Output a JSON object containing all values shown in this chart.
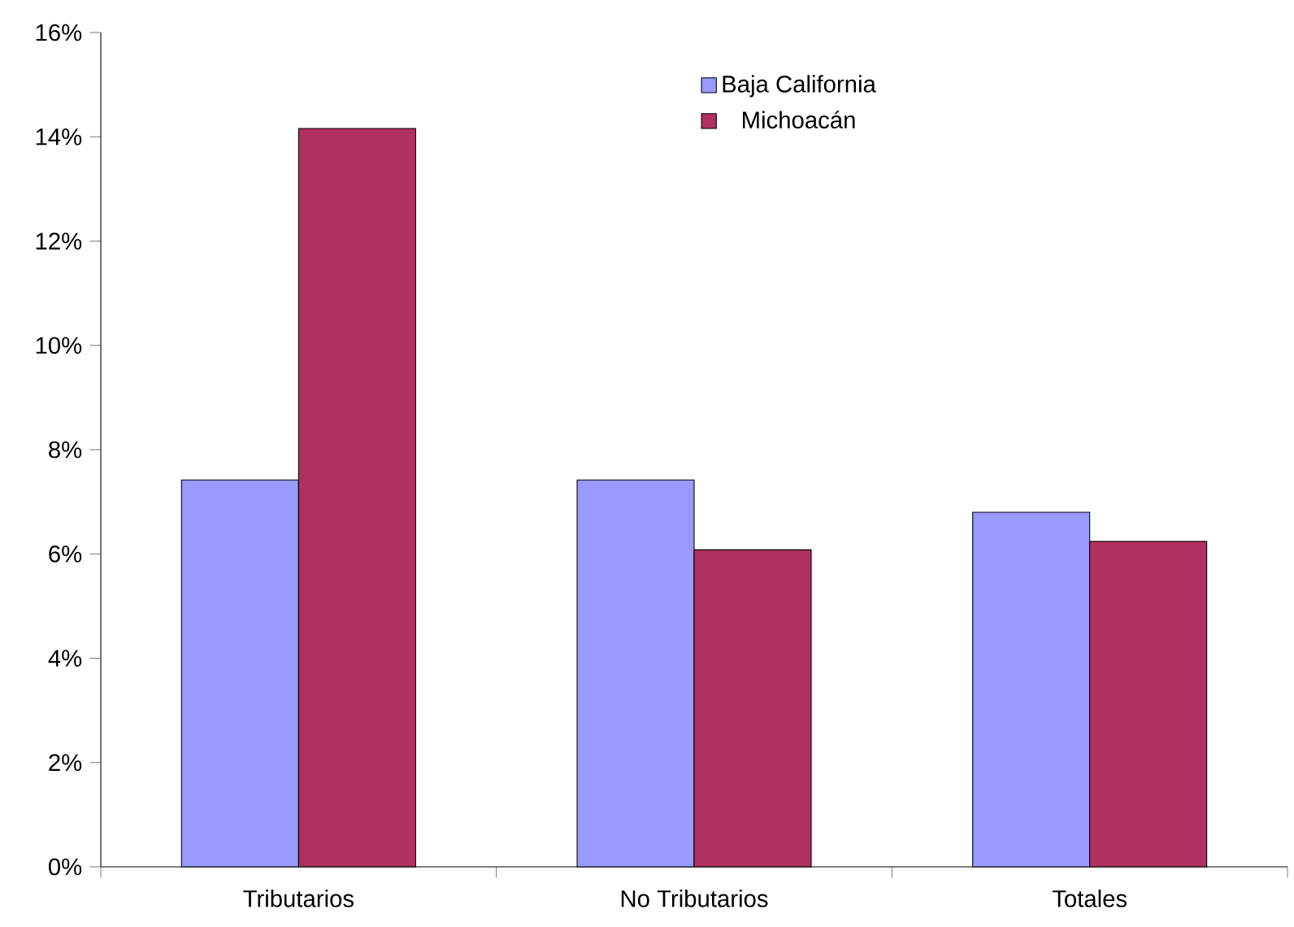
{
  "chart_data": {
    "type": "bar",
    "categories": [
      "Tributarios",
      "No Tributarios",
      "Totales"
    ],
    "series": [
      {
        "name": "Baja California",
        "color": "#9999ff",
        "values": [
          7.42,
          7.42,
          6.8
        ]
      },
      {
        "name": "Michoacán",
        "color": "#b03060",
        "values": [
          14.16,
          6.08,
          6.24
        ]
      }
    ],
    "ylim": [
      0,
      16
    ],
    "yticks": [
      {
        "value": 0,
        "label": "0%"
      },
      {
        "value": 2,
        "label": "2%"
      },
      {
        "value": 4,
        "label": "4%"
      },
      {
        "value": 6,
        "label": "6%"
      },
      {
        "value": 8,
        "label": "8%"
      },
      {
        "value": 10,
        "label": "10%"
      },
      {
        "value": 12,
        "label": "12%"
      },
      {
        "value": 14,
        "label": "14%"
      },
      {
        "value": 16,
        "label": "16%"
      }
    ],
    "grid": false,
    "legend": "top"
  }
}
